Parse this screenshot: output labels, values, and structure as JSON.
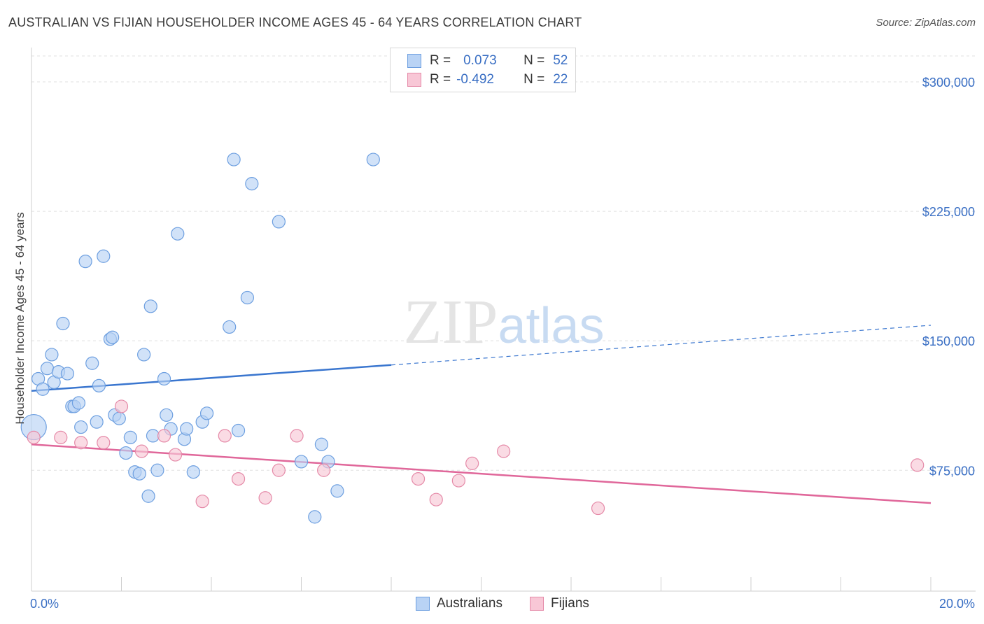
{
  "title": "AUSTRALIAN VS FIJIAN HOUSEHOLDER INCOME AGES 45 - 64 YEARS CORRELATION CHART",
  "source": "Source: ZipAtlas.com",
  "watermark": "ZIPatlas",
  "legend": {
    "rows": [
      {
        "r_label": "R =",
        "r_value": "0.073",
        "n_label": "N =",
        "n_value": "52",
        "fill": "#b9d3f5",
        "stroke": "#6d9fe0"
      },
      {
        "r_label": "R =",
        "r_value": "-0.492",
        "n_label": "N =",
        "n_value": "22",
        "fill": "#f8c7d6",
        "stroke": "#e58aa8"
      }
    ]
  },
  "bottom_legend": [
    {
      "label": "Australians",
      "fill": "#b9d3f5",
      "stroke": "#6d9fe0"
    },
    {
      "label": "Fijians",
      "fill": "#f8c7d6",
      "stroke": "#e58aa8"
    }
  ],
  "chart_data": {
    "type": "scatter",
    "title": "AUSTRALIAN VS FIJIAN HOUSEHOLDER INCOME AGES 45 - 64 YEARS CORRELATION CHART",
    "xlabel": "",
    "ylabel": "Householder Income Ages 45 - 64 years",
    "xlim": [
      0,
      20
    ],
    "ylim": [
      5000,
      315000
    ],
    "x_tick_labels": [
      "0.0%",
      "20.0%"
    ],
    "y_ticks": [
      75000,
      150000,
      225000,
      300000
    ],
    "y_tick_labels": [
      "$75,000",
      "$150,000",
      "$225,000",
      "$300,000"
    ],
    "grid": "horizontal dashed",
    "colors": {
      "australians": "#3a76cf",
      "fijians": "#e0679a",
      "axis_text": "#3a6fc4"
    },
    "series": [
      {
        "name": "Australians",
        "color": "#6d9fe0",
        "fill": "#b9d3f5",
        "points": [
          [
            0.05,
            100000
          ],
          [
            0.15,
            128000
          ],
          [
            0.25,
            122000
          ],
          [
            0.35,
            134000
          ],
          [
            0.45,
            142000
          ],
          [
            0.5,
            126000
          ],
          [
            0.6,
            132000
          ],
          [
            0.7,
            160000
          ],
          [
            0.8,
            131000
          ],
          [
            0.9,
            112000
          ],
          [
            0.95,
            112000
          ],
          [
            1.05,
            114000
          ],
          [
            1.1,
            100000
          ],
          [
            1.2,
            196000
          ],
          [
            1.35,
            137000
          ],
          [
            1.45,
            103000
          ],
          [
            1.5,
            124000
          ],
          [
            1.6,
            199000
          ],
          [
            1.75,
            151000
          ],
          [
            1.8,
            152000
          ],
          [
            1.85,
            107000
          ],
          [
            1.95,
            105000
          ],
          [
            2.1,
            85000
          ],
          [
            2.2,
            94000
          ],
          [
            2.3,
            74000
          ],
          [
            2.4,
            73000
          ],
          [
            2.5,
            142000
          ],
          [
            2.6,
            60000
          ],
          [
            2.65,
            170000
          ],
          [
            2.7,
            95000
          ],
          [
            2.8,
            75000
          ],
          [
            2.95,
            128000
          ],
          [
            3.0,
            107000
          ],
          [
            3.1,
            99000
          ],
          [
            3.25,
            212000
          ],
          [
            3.4,
            93000
          ],
          [
            3.45,
            99000
          ],
          [
            3.6,
            74000
          ],
          [
            3.8,
            103000
          ],
          [
            3.9,
            108000
          ],
          [
            4.4,
            158000
          ],
          [
            4.5,
            255000
          ],
          [
            4.6,
            98000
          ],
          [
            4.8,
            175000
          ],
          [
            4.9,
            241000
          ],
          [
            5.5,
            219000
          ],
          [
            6.0,
            80000
          ],
          [
            6.3,
            48000
          ],
          [
            6.45,
            90000
          ],
          [
            6.6,
            80000
          ],
          [
            6.8,
            63000
          ],
          [
            7.6,
            255000
          ]
        ]
      },
      {
        "name": "Fijians",
        "color": "#e58aa8",
        "fill": "#f8c7d6",
        "points": [
          [
            0.05,
            94000
          ],
          [
            0.65,
            94000
          ],
          [
            1.1,
            91000
          ],
          [
            1.6,
            91000
          ],
          [
            2.0,
            112000
          ],
          [
            2.45,
            86000
          ],
          [
            2.95,
            95000
          ],
          [
            3.2,
            84000
          ],
          [
            3.8,
            57000
          ],
          [
            4.3,
            95000
          ],
          [
            4.6,
            70000
          ],
          [
            5.2,
            59000
          ],
          [
            5.5,
            75000
          ],
          [
            5.9,
            95000
          ],
          [
            6.5,
            75000
          ],
          [
            8.6,
            70000
          ],
          [
            9.0,
            58000
          ],
          [
            9.5,
            69000
          ],
          [
            9.8,
            79000
          ],
          [
            10.5,
            86000
          ],
          [
            12.6,
            53000
          ],
          [
            19.7,
            78000
          ]
        ]
      }
    ],
    "trend_lines": [
      {
        "series": "Australians",
        "x": [
          0,
          8
        ],
        "y": [
          121000,
          136000
        ],
        "dashed_extension": {
          "x": [
            8,
            20
          ],
          "y": [
            136000,
            159000
          ]
        }
      },
      {
        "series": "Fijians",
        "x": [
          0,
          20
        ],
        "y": [
          90000,
          56000
        ]
      }
    ]
  }
}
